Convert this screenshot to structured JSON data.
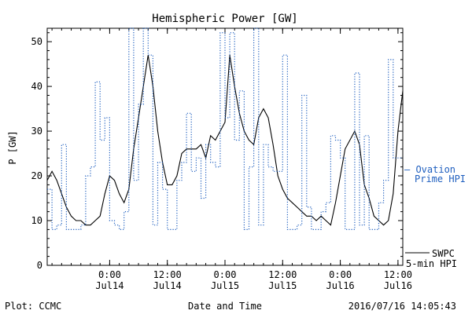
{
  "chart_data": {
    "type": "line",
    "title": "Hemispheric Power [GW]",
    "ylabel": "P [GW]",
    "xlabel": "Date and Time",
    "ylim": [
      0,
      53
    ],
    "yticks": [
      0,
      10,
      20,
      30,
      40,
      50
    ],
    "xlim": [
      "2016-07-13 11:00",
      "2016-07-16 13:00"
    ],
    "xticks": [
      {
        "t": "2016-07-14 00:00",
        "line1": "0:00",
        "line2": "Jul14"
      },
      {
        "t": "2016-07-14 12:00",
        "line1": "12:00",
        "line2": "Jul14"
      },
      {
        "t": "2016-07-15 00:00",
        "line1": "0:00",
        "line2": "Jul15"
      },
      {
        "t": "2016-07-15 12:00",
        "line1": "12:00",
        "line2": "Jul15"
      },
      {
        "t": "2016-07-16 00:00",
        "line1": "0:00",
        "line2": "Jul16"
      },
      {
        "t": "2016-07-16 12:00",
        "line1": "12:00",
        "line2": "Jul16"
      }
    ],
    "grid": false,
    "series": [
      {
        "name": "SWPC 5-min HPI",
        "color": "#000000",
        "style": "solid",
        "x": [
          "2016-07-13 11:00",
          "2016-07-13 12:00",
          "2016-07-13 13:00",
          "2016-07-13 14:00",
          "2016-07-13 15:00",
          "2016-07-13 16:00",
          "2016-07-13 17:00",
          "2016-07-13 18:00",
          "2016-07-13 19:00",
          "2016-07-13 20:00",
          "2016-07-13 21:00",
          "2016-07-13 22:00",
          "2016-07-13 23:00",
          "2016-07-14 00:00",
          "2016-07-14 01:00",
          "2016-07-14 02:00",
          "2016-07-14 03:00",
          "2016-07-14 04:00",
          "2016-07-14 05:00",
          "2016-07-14 06:00",
          "2016-07-14 07:00",
          "2016-07-14 08:00",
          "2016-07-14 09:00",
          "2016-07-14 10:00",
          "2016-07-14 11:00",
          "2016-07-14 12:00",
          "2016-07-14 13:00",
          "2016-07-14 14:00",
          "2016-07-14 15:00",
          "2016-07-14 16:00",
          "2016-07-14 17:00",
          "2016-07-14 18:00",
          "2016-07-14 19:00",
          "2016-07-14 20:00",
          "2016-07-14 21:00",
          "2016-07-14 22:00",
          "2016-07-14 23:00",
          "2016-07-15 00:00",
          "2016-07-15 01:00",
          "2016-07-15 02:00",
          "2016-07-15 03:00",
          "2016-07-15 04:00",
          "2016-07-15 05:00",
          "2016-07-15 06:00",
          "2016-07-15 07:00",
          "2016-07-15 08:00",
          "2016-07-15 09:00",
          "2016-07-15 10:00",
          "2016-07-15 11:00",
          "2016-07-15 12:00",
          "2016-07-15 13:00",
          "2016-07-15 14:00",
          "2016-07-15 15:00",
          "2016-07-15 16:00",
          "2016-07-15 17:00",
          "2016-07-15 18:00",
          "2016-07-15 19:00",
          "2016-07-15 20:00",
          "2016-07-15 21:00",
          "2016-07-15 22:00",
          "2016-07-15 23:00",
          "2016-07-16 00:00",
          "2016-07-16 01:00",
          "2016-07-16 02:00",
          "2016-07-16 03:00",
          "2016-07-16 04:00",
          "2016-07-16 05:00",
          "2016-07-16 06:00",
          "2016-07-16 07:00",
          "2016-07-16 08:00",
          "2016-07-16 09:00",
          "2016-07-16 10:00",
          "2016-07-16 11:00",
          "2016-07-16 12:00",
          "2016-07-16 13:00"
        ],
        "values": [
          19,
          21,
          19,
          16,
          13,
          11,
          10,
          10,
          9,
          9,
          10,
          11,
          16,
          20,
          19,
          16,
          14,
          17,
          26,
          33,
          40,
          47,
          40,
          30,
          23,
          18,
          18,
          20,
          25,
          26,
          26,
          26,
          27,
          24,
          29,
          28,
          30,
          32,
          47,
          40,
          34,
          30,
          28,
          27,
          33,
          35,
          33,
          27,
          20,
          17,
          15,
          14,
          13,
          12,
          11,
          11,
          10,
          11,
          10,
          9,
          14,
          20,
          26,
          28,
          30,
          27,
          18,
          15,
          11,
          10,
          9,
          10,
          16,
          30,
          39
        ]
      },
      {
        "name": "Ovation Prime HPI",
        "color": "#1f5fbf",
        "style": "dotted-step",
        "x": [
          "2016-07-13 11:00",
          "2016-07-13 12:00",
          "2016-07-13 13:00",
          "2016-07-13 14:00",
          "2016-07-13 15:00",
          "2016-07-13 16:00",
          "2016-07-13 17:00",
          "2016-07-13 18:00",
          "2016-07-13 19:00",
          "2016-07-13 20:00",
          "2016-07-13 21:00",
          "2016-07-13 22:00",
          "2016-07-13 23:00",
          "2016-07-14 00:00",
          "2016-07-14 01:00",
          "2016-07-14 02:00",
          "2016-07-14 03:00",
          "2016-07-14 04:00",
          "2016-07-14 05:00",
          "2016-07-14 06:00",
          "2016-07-14 07:00",
          "2016-07-14 08:00",
          "2016-07-14 09:00",
          "2016-07-14 10:00",
          "2016-07-14 11:00",
          "2016-07-14 12:00",
          "2016-07-14 13:00",
          "2016-07-14 14:00",
          "2016-07-14 15:00",
          "2016-07-14 16:00",
          "2016-07-14 17:00",
          "2016-07-14 18:00",
          "2016-07-14 19:00",
          "2016-07-14 20:00",
          "2016-07-14 21:00",
          "2016-07-14 22:00",
          "2016-07-14 23:00",
          "2016-07-15 00:00",
          "2016-07-15 01:00",
          "2016-07-15 02:00",
          "2016-07-15 03:00",
          "2016-07-15 04:00",
          "2016-07-15 05:00",
          "2016-07-15 06:00",
          "2016-07-15 07:00",
          "2016-07-15 08:00",
          "2016-07-15 09:00",
          "2016-07-15 10:00",
          "2016-07-15 11:00",
          "2016-07-15 12:00",
          "2016-07-15 13:00",
          "2016-07-15 14:00",
          "2016-07-15 15:00",
          "2016-07-15 16:00",
          "2016-07-15 17:00",
          "2016-07-15 18:00",
          "2016-07-15 19:00",
          "2016-07-15 20:00",
          "2016-07-15 21:00",
          "2016-07-15 22:00",
          "2016-07-15 23:00",
          "2016-07-16 00:00",
          "2016-07-16 01:00",
          "2016-07-16 02:00",
          "2016-07-16 03:00",
          "2016-07-16 04:00",
          "2016-07-16 05:00",
          "2016-07-16 06:00",
          "2016-07-16 07:00",
          "2016-07-16 08:00",
          "2016-07-16 09:00",
          "2016-07-16 10:00",
          "2016-07-16 11:00",
          "2016-07-16 12:00",
          "2016-07-16 13:00"
        ],
        "values": [
          17,
          8,
          9,
          27,
          8,
          8,
          8,
          9,
          20,
          22,
          41,
          28,
          33,
          10,
          9,
          8,
          12,
          53,
          19,
          36,
          53,
          47,
          9,
          23,
          17,
          8,
          8,
          19,
          23,
          34,
          21,
          24,
          15,
          27,
          23,
          22,
          52,
          33,
          52,
          28,
          39,
          8,
          22,
          53,
          9,
          27,
          22,
          21,
          21,
          47,
          8,
          8,
          9,
          38,
          13,
          8,
          8,
          12,
          14,
          29,
          28,
          24,
          8,
          8,
          43,
          9,
          29,
          8,
          8,
          14,
          19,
          46,
          24,
          24,
          24
        ]
      }
    ],
    "legend": [
      {
        "line1": "SWPC",
        "line2": "5-min HPI",
        "color": "#000000"
      },
      {
        "line1": "— Ovation",
        "line2": "Prime HPI",
        "color": "#1f5fbf"
      }
    ],
    "legend_placement": "right"
  },
  "footer": {
    "left": "Plot: CCMC",
    "center": "Date and Time",
    "right": "2016/07/16 14:05:43"
  }
}
